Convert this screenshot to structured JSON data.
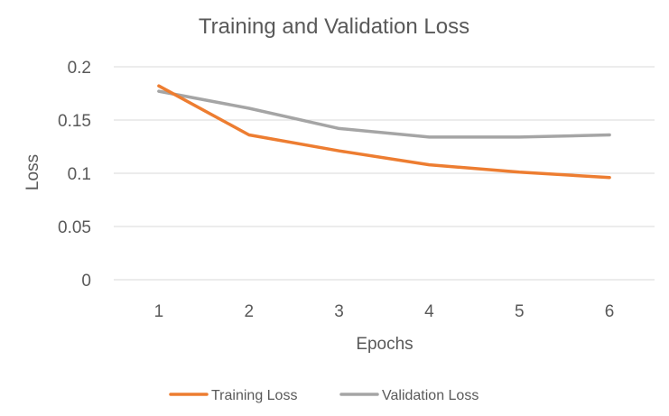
{
  "chart_data": {
    "type": "line",
    "title": "Training and Validation Loss",
    "xlabel": "Epochs",
    "ylabel": "Loss",
    "x": [
      1,
      2,
      3,
      4,
      5,
      6
    ],
    "categories": [
      "1",
      "2",
      "3",
      "4",
      "5",
      "6"
    ],
    "ylim": [
      0,
      0.2
    ],
    "yticks": [
      0,
      0.05,
      0.1,
      0.15,
      0.2
    ],
    "ytick_labels": [
      "0",
      "0.05",
      "0.1",
      "0.15",
      "0.2"
    ],
    "grid": true,
    "legend_position": "bottom",
    "series": [
      {
        "name": "Training Loss",
        "color": "#ED7D31",
        "values": [
          0.182,
          0.136,
          0.121,
          0.108,
          0.101,
          0.096
        ]
      },
      {
        "name": "Validation Loss",
        "color": "#A5A5A5",
        "values": [
          0.177,
          0.161,
          0.142,
          0.134,
          0.134,
          0.136
        ]
      }
    ]
  }
}
